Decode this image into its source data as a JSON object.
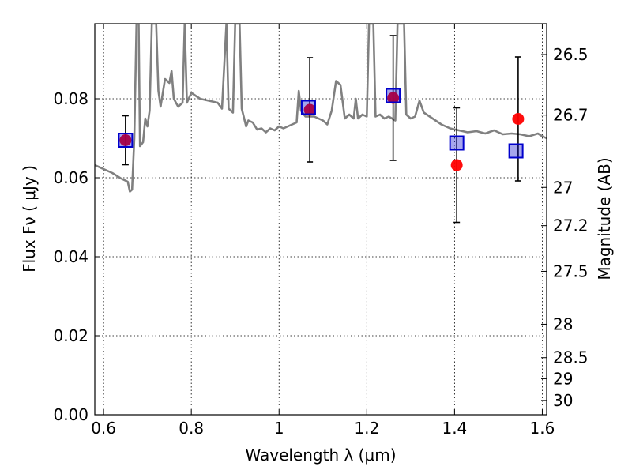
{
  "chart_data": {
    "type": "scatter",
    "xlabel": "Wavelength  λ (μm)",
    "ylabel": "Flux  Fν  ( μJy )",
    "y2label": "Magnitude (AB)",
    "xlim": [
      0.58,
      1.61
    ],
    "ylim": [
      0.0,
      0.099
    ],
    "grid": true,
    "x_ticks": [
      0.6,
      0.8,
      1.0,
      1.2,
      1.4,
      1.6
    ],
    "x_tick_labels": [
      "0.6",
      "0.8",
      "1",
      "1.2",
      "1.4",
      "1.6"
    ],
    "y_ticks": [
      0.0,
      0.02,
      0.04,
      0.06,
      0.08
    ],
    "y_tick_labels": [
      "0.00",
      "0.02",
      "0.04",
      "0.06",
      "0.08"
    ],
    "y2_ticks": [
      26.5,
      26.7,
      27,
      27.2,
      27.5,
      28,
      28.5,
      29,
      30
    ],
    "y2_tick_labels": [
      "26.5",
      "26.7",
      "27",
      "27.2",
      "27.5",
      "28",
      "28.5",
      "29",
      "30"
    ],
    "observed": {
      "color": "#ff0000",
      "points": [
        {
          "x": 0.65,
          "y": 0.0695,
          "err": 0.0062
        },
        {
          "x": 1.07,
          "y": 0.0772,
          "err": 0.0132
        },
        {
          "x": 1.26,
          "y": 0.0802,
          "err": 0.0158
        },
        {
          "x": 1.405,
          "y": 0.0632,
          "err": 0.0145
        },
        {
          "x": 1.545,
          "y": 0.0749,
          "err": 0.0157
        }
      ]
    },
    "model_bands": {
      "color": "#0000cc",
      "points": [
        {
          "x": 0.65,
          "y": 0.0695
        },
        {
          "x": 1.067,
          "y": 0.0778
        },
        {
          "x": 1.26,
          "y": 0.0808
        },
        {
          "x": 1.405,
          "y": 0.0688
        },
        {
          "x": 1.54,
          "y": 0.0668
        }
      ]
    },
    "model_spectrum": {
      "color": "#808080",
      "points": [
        [
          0.58,
          0.0632
        ],
        [
          0.6,
          0.0622
        ],
        [
          0.62,
          0.0612
        ],
        [
          0.64,
          0.0598
        ],
        [
          0.655,
          0.059
        ],
        [
          0.66,
          0.0565
        ],
        [
          0.665,
          0.057
        ],
        [
          0.67,
          0.07
        ],
        [
          0.675,
          0.099
        ],
        [
          0.68,
          0.099
        ],
        [
          0.683,
          0.068
        ],
        [
          0.69,
          0.069
        ],
        [
          0.695,
          0.075
        ],
        [
          0.7,
          0.073
        ],
        [
          0.705,
          0.077
        ],
        [
          0.71,
          0.099
        ],
        [
          0.72,
          0.099
        ],
        [
          0.725,
          0.082
        ],
        [
          0.73,
          0.078
        ],
        [
          0.74,
          0.085
        ],
        [
          0.75,
          0.084
        ],
        [
          0.755,
          0.087
        ],
        [
          0.76,
          0.08
        ],
        [
          0.77,
          0.078
        ],
        [
          0.78,
          0.079
        ],
        [
          0.785,
          0.099
        ],
        [
          0.79,
          0.079
        ],
        [
          0.8,
          0.0815
        ],
        [
          0.82,
          0.08
        ],
        [
          0.84,
          0.0795
        ],
        [
          0.86,
          0.079
        ],
        [
          0.87,
          0.0775
        ],
        [
          0.88,
          0.099
        ],
        [
          0.885,
          0.0775
        ],
        [
          0.895,
          0.0765
        ],
        [
          0.9,
          0.099
        ],
        [
          0.91,
          0.099
        ],
        [
          0.915,
          0.0775
        ],
        [
          0.925,
          0.073
        ],
        [
          0.93,
          0.0745
        ],
        [
          0.94,
          0.074
        ],
        [
          0.95,
          0.0722
        ],
        [
          0.96,
          0.0725
        ],
        [
          0.97,
          0.0715
        ],
        [
          0.98,
          0.0725
        ],
        [
          0.99,
          0.072
        ],
        [
          1.0,
          0.073
        ],
        [
          1.01,
          0.0725
        ],
        [
          1.02,
          0.073
        ],
        [
          1.03,
          0.0735
        ],
        [
          1.04,
          0.074
        ],
        [
          1.045,
          0.082
        ],
        [
          1.05,
          0.077
        ],
        [
          1.06,
          0.0755
        ],
        [
          1.08,
          0.0755
        ],
        [
          1.09,
          0.075
        ],
        [
          1.1,
          0.0745
        ],
        [
          1.11,
          0.0735
        ],
        [
          1.12,
          0.077
        ],
        [
          1.13,
          0.0845
        ],
        [
          1.14,
          0.0835
        ],
        [
          1.15,
          0.075
        ],
        [
          1.16,
          0.076
        ],
        [
          1.17,
          0.075
        ],
        [
          1.175,
          0.08
        ],
        [
          1.18,
          0.075
        ],
        [
          1.19,
          0.076
        ],
        [
          1.2,
          0.0755
        ],
        [
          1.205,
          0.099
        ],
        [
          1.215,
          0.099
        ],
        [
          1.22,
          0.0755
        ],
        [
          1.23,
          0.076
        ],
        [
          1.24,
          0.075
        ],
        [
          1.25,
          0.0755
        ],
        [
          1.265,
          0.0745
        ],
        [
          1.27,
          0.099
        ],
        [
          1.285,
          0.099
        ],
        [
          1.29,
          0.076
        ],
        [
          1.3,
          0.075
        ],
        [
          1.31,
          0.0755
        ],
        [
          1.32,
          0.0795
        ],
        [
          1.33,
          0.0765
        ],
        [
          1.35,
          0.075
        ],
        [
          1.37,
          0.0735
        ],
        [
          1.39,
          0.0725
        ],
        [
          1.41,
          0.072
        ],
        [
          1.43,
          0.0715
        ],
        [
          1.45,
          0.0718
        ],
        [
          1.47,
          0.0712
        ],
        [
          1.49,
          0.072
        ],
        [
          1.51,
          0.071
        ],
        [
          1.53,
          0.0712
        ],
        [
          1.55,
          0.071
        ],
        [
          1.57,
          0.0705
        ],
        [
          1.59,
          0.0712
        ],
        [
          1.6,
          0.0705
        ],
        [
          1.61,
          0.07
        ]
      ]
    }
  }
}
